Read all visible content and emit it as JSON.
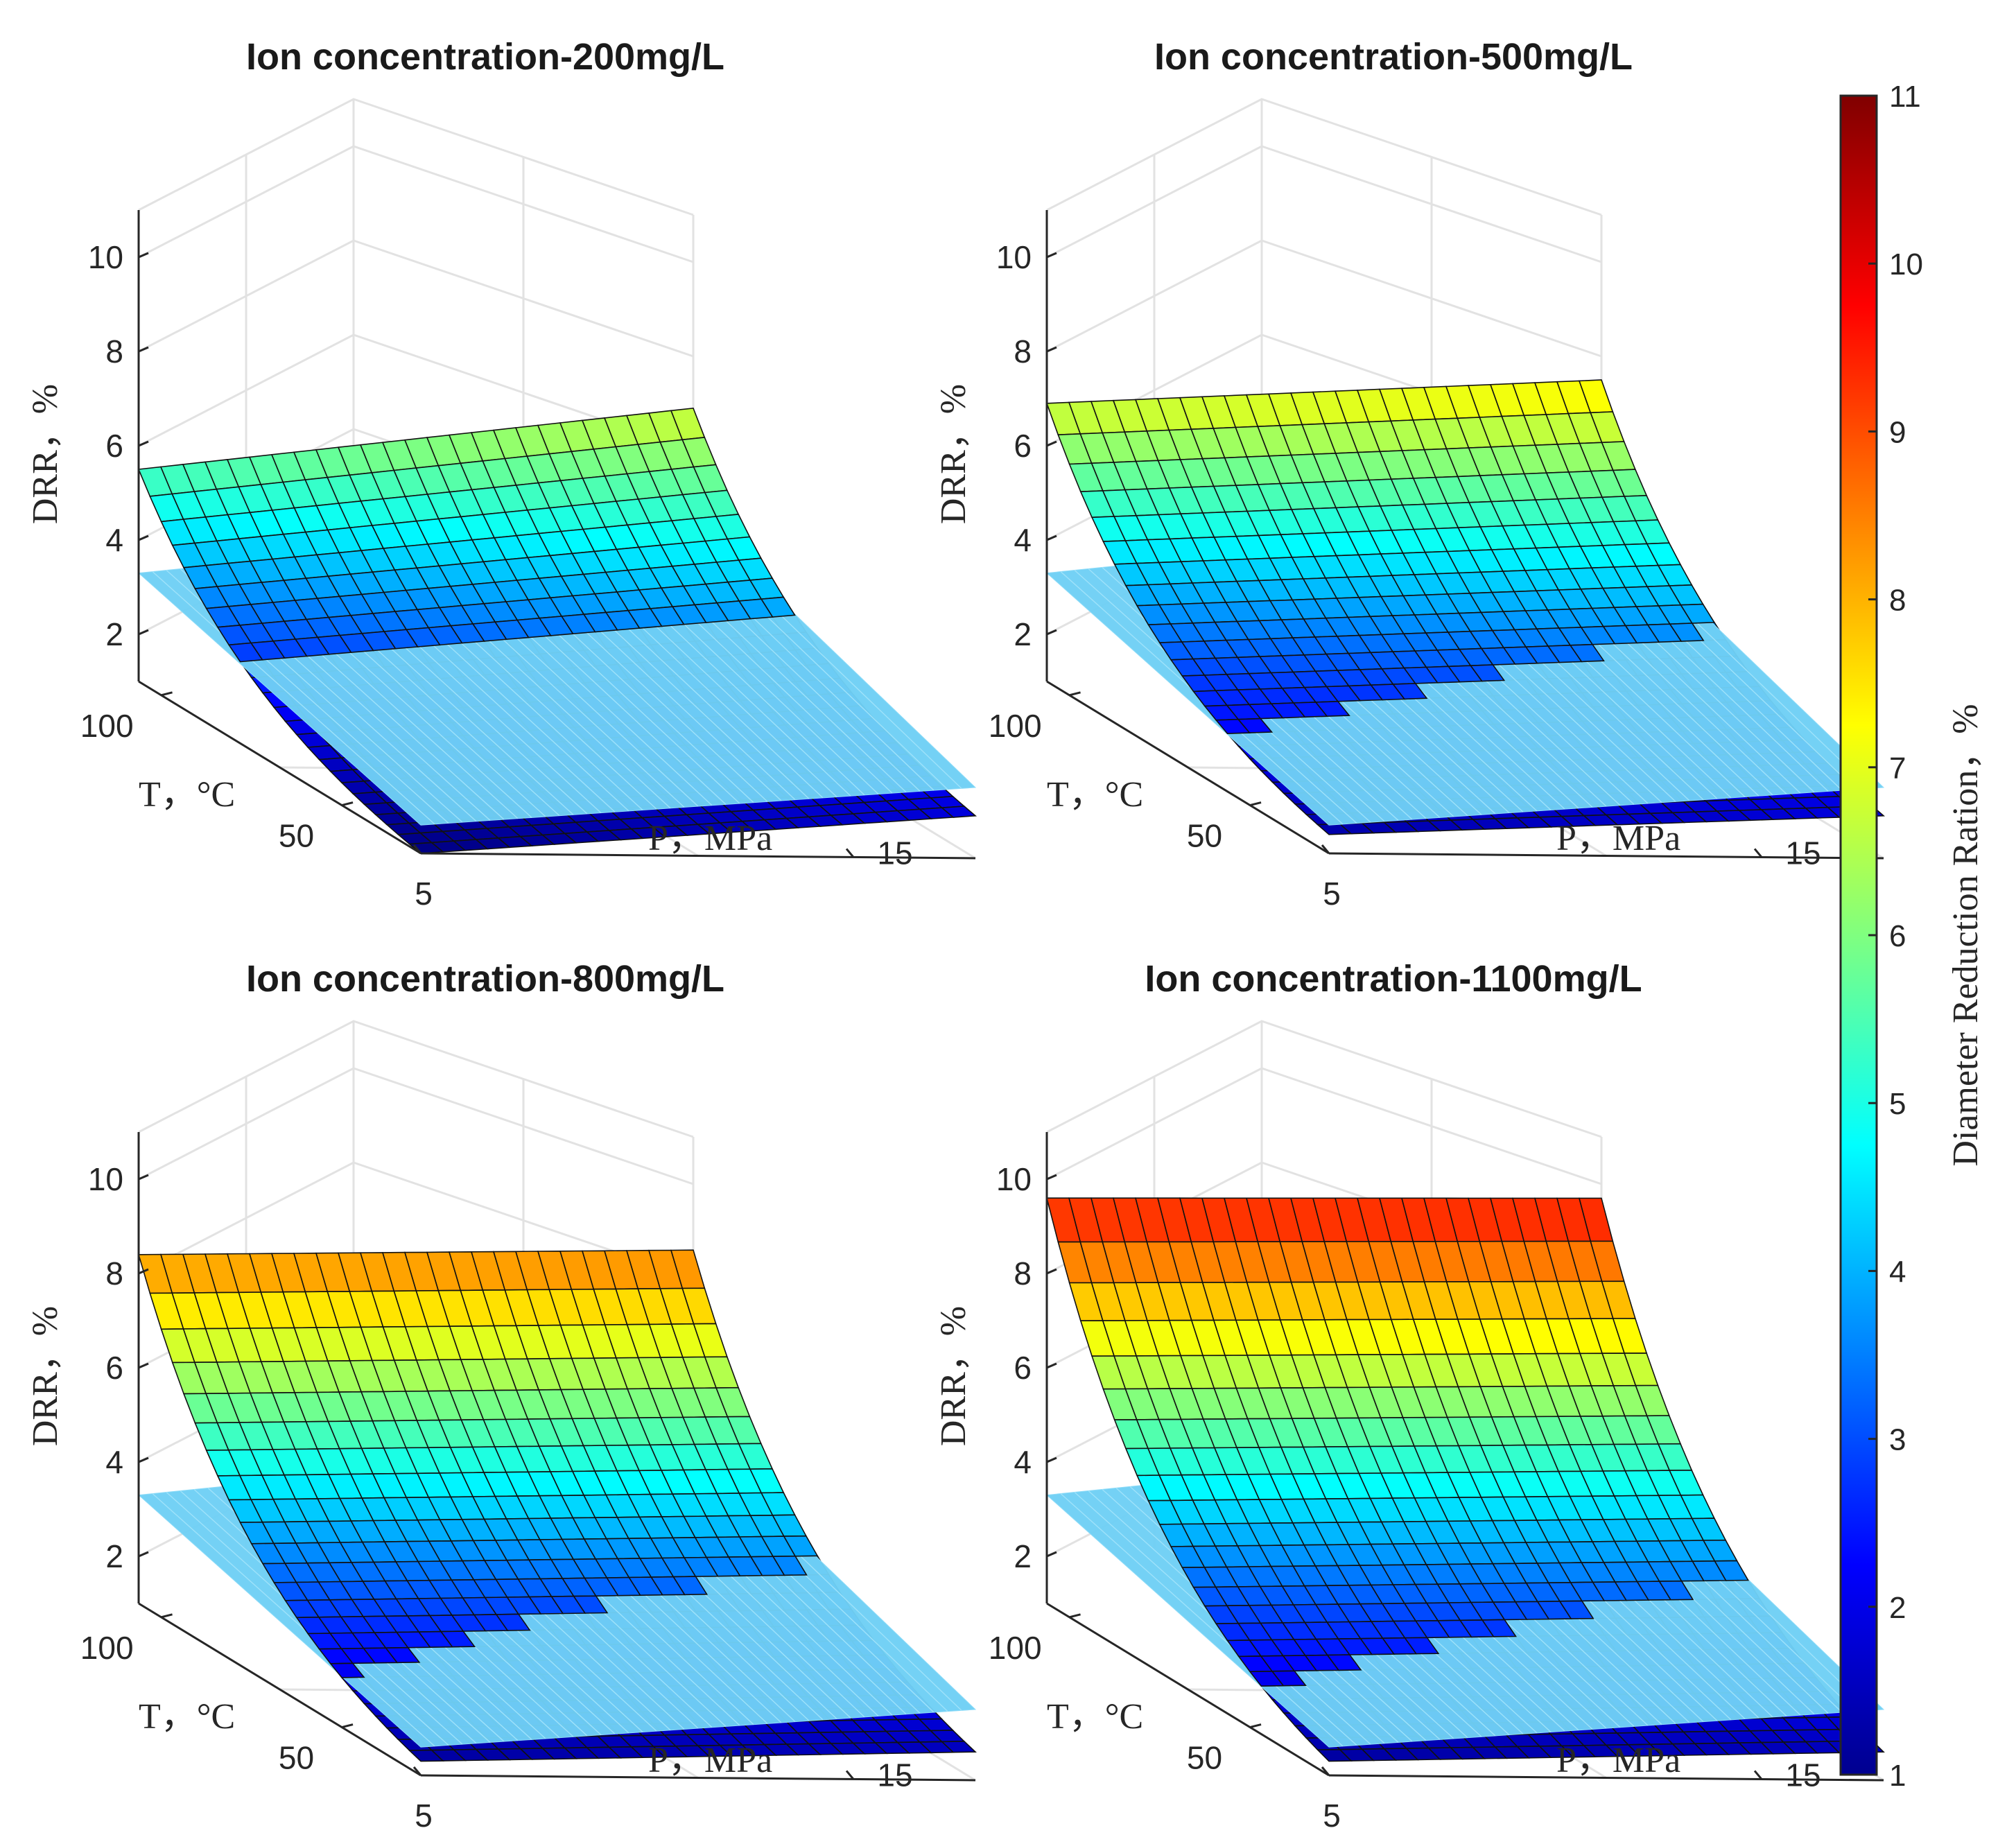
{
  "chart_data": {
    "type": "surface3d",
    "subplots": [
      {
        "title": "Ion concentration-200mg/L",
        "zlabel": "DRR，%",
        "ylabel": "T，°C",
        "xlabel": "P，MPa",
        "zticks": [
          "2",
          "4",
          "6",
          "8",
          "10"
        ],
        "tticks": [
          "50",
          "100"
        ],
        "pticks": [
          "5",
          "15"
        ],
        "zlim": [
          1,
          11
        ],
        "surface": {
          "drr_highT_lowP": 5.5,
          "drr_highT_highP": 6.9,
          "drr_lowT_lowP": 1.0,
          "drr_lowT_highP": 1.9
        },
        "threshold_plane": {
          "drr_highT_lowP": 3.3,
          "drr_highT_highP": 4.6,
          "drr_lowT_lowP": 1.6,
          "drr_lowT_highP": 2.5
        }
      },
      {
        "title": "Ion concentration-500mg/L",
        "zlabel": "DRR，%",
        "ylabel": "T，°C",
        "xlabel": "P，MPa",
        "zticks": [
          "2",
          "4",
          "6",
          "8",
          "10"
        ],
        "tticks": [
          "50",
          "100"
        ],
        "pticks": [
          "5",
          "15"
        ],
        "zlim": [
          1,
          11
        ],
        "surface": {
          "drr_highT_lowP": 6.9,
          "drr_highT_highP": 7.5,
          "drr_lowT_lowP": 1.4,
          "drr_lowT_highP": 1.9
        },
        "threshold_plane": {
          "drr_highT_lowP": 3.3,
          "drr_highT_highP": 4.6,
          "drr_lowT_lowP": 1.6,
          "drr_lowT_highP": 2.5
        }
      },
      {
        "title": "Ion concentration-800mg/L",
        "zlabel": "DRR，%",
        "ylabel": "T，°C",
        "xlabel": "P，MPa",
        "zticks": [
          "2",
          "4",
          "6",
          "8",
          "10"
        ],
        "tticks": [
          "50",
          "100"
        ],
        "pticks": [
          "5",
          "15"
        ],
        "zlim": [
          1,
          11
        ],
        "surface": {
          "drr_highT_lowP": 8.4,
          "drr_highT_highP": 8.6,
          "drr_lowT_lowP": 1.3,
          "drr_lowT_highP": 1.6
        },
        "threshold_plane": {
          "drr_highT_lowP": 3.3,
          "drr_highT_highP": 4.6,
          "drr_lowT_lowP": 1.6,
          "drr_lowT_highP": 2.5
        }
      },
      {
        "title": "Ion concentration-1100mg/L",
        "zlabel": "DRR，%",
        "ylabel": "T，°C",
        "xlabel": "P，MPa",
        "zticks": [
          "2",
          "4",
          "6",
          "8",
          "10"
        ],
        "tticks": [
          "50",
          "100"
        ],
        "pticks": [
          "5",
          "15"
        ],
        "zlim": [
          1,
          11
        ],
        "surface": {
          "drr_highT_lowP": 9.6,
          "drr_highT_highP": 9.7,
          "drr_lowT_lowP": 1.3,
          "drr_lowT_highP": 1.6
        },
        "threshold_plane": {
          "drr_highT_lowP": 3.3,
          "drr_highT_highP": 4.6,
          "drr_lowT_lowP": 1.6,
          "drr_lowT_highP": 2.5
        }
      }
    ],
    "colorbar": {
      "label": "Diameter Reduction Ration，%",
      "range": [
        1,
        11
      ],
      "ticks": [
        "1",
        "2",
        "3",
        "4",
        "5",
        "6",
        "7",
        "8",
        "9",
        "10",
        "11"
      ],
      "colormap": "jet"
    },
    "threshold_plane_color": "#6fd0f5",
    "grid": true
  }
}
